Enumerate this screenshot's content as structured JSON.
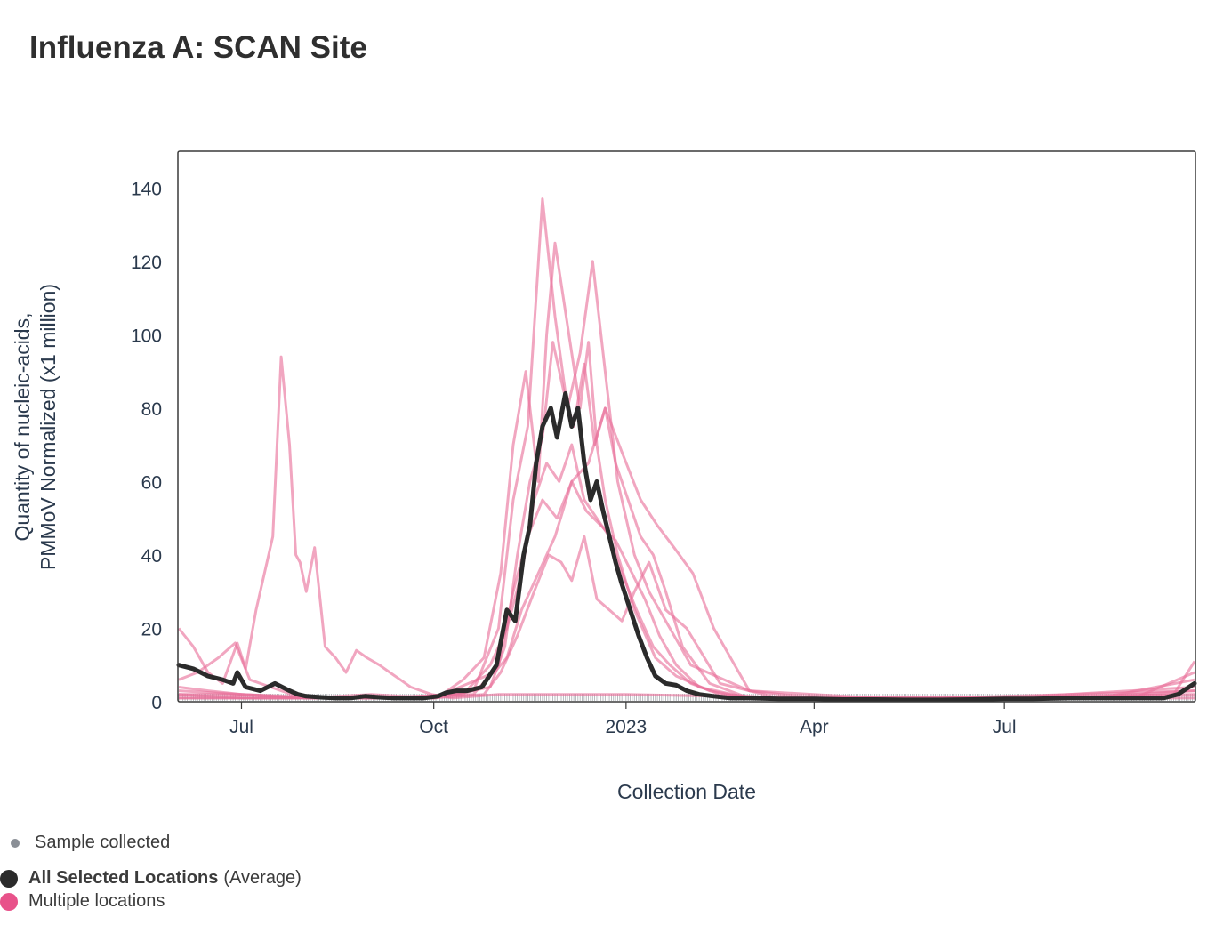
{
  "title": "Influenza A: SCAN Site",
  "chart_data": {
    "type": "line",
    "xlabel": "Collection Date",
    "ylabel_line1": "Quantity of nucleic-acids,",
    "ylabel_line2": "PMMoV Normalized (x1 million)",
    "ylim": [
      0,
      150
    ],
    "xlim": [
      "2022-06-01",
      "2023-09-30"
    ],
    "yticks": [
      0,
      20,
      40,
      60,
      80,
      100,
      120,
      140
    ],
    "xticks": [
      {
        "date": "2022-07-01",
        "label": "Jul"
      },
      {
        "date": "2022-10-01",
        "label": "Oct"
      },
      {
        "date": "2023-01-01",
        "label": "2023"
      },
      {
        "date": "2023-04-01",
        "label": "Apr"
      },
      {
        "date": "2023-07-01",
        "label": "Jul"
      }
    ],
    "grid": false,
    "colors": {
      "average": "#2b2b2b",
      "locations": "#e8709a",
      "sample": "#8a8f96"
    },
    "average_series": {
      "name": "All Selected Locations",
      "x": [
        "2022-06-01",
        "2022-06-08",
        "2022-06-15",
        "2022-06-22",
        "2022-06-27",
        "2022-06-29",
        "2022-07-03",
        "2022-07-10",
        "2022-07-17",
        "2022-07-24",
        "2022-07-28",
        "2022-08-01",
        "2022-08-08",
        "2022-08-15",
        "2022-08-22",
        "2022-08-29",
        "2022-09-05",
        "2022-09-12",
        "2022-09-19",
        "2022-09-26",
        "2022-10-03",
        "2022-10-07",
        "2022-10-12",
        "2022-10-17",
        "2022-10-24",
        "2022-10-31",
        "2022-11-05",
        "2022-11-09",
        "2022-11-13",
        "2022-11-16",
        "2022-11-19",
        "2022-11-22",
        "2022-11-26",
        "2022-11-29",
        "2022-12-03",
        "2022-12-06",
        "2022-12-09",
        "2022-12-12",
        "2022-12-15",
        "2022-12-18",
        "2022-12-21",
        "2022-12-24",
        "2022-12-27",
        "2022-12-30",
        "2023-01-03",
        "2023-01-07",
        "2023-01-11",
        "2023-01-15",
        "2023-01-20",
        "2023-01-25",
        "2023-01-30",
        "2023-02-05",
        "2023-02-12",
        "2023-02-20",
        "2023-03-01",
        "2023-03-15",
        "2023-04-01",
        "2023-04-15",
        "2023-05-01",
        "2023-05-15",
        "2023-06-01",
        "2023-06-15",
        "2023-07-01",
        "2023-07-15",
        "2023-08-01",
        "2023-08-15",
        "2023-09-01",
        "2023-09-15",
        "2023-09-22",
        "2023-09-30"
      ],
      "values": [
        10,
        9,
        7,
        6,
        5,
        8,
        4,
        3,
        5,
        3,
        2,
        1.5,
        1.2,
        1,
        1,
        1.5,
        1.2,
        1,
        1,
        1,
        1.5,
        2.5,
        3,
        3,
        4,
        10,
        25,
        22,
        40,
        48,
        65,
        75,
        80,
        72,
        84,
        75,
        80,
        65,
        55,
        60,
        52,
        45,
        38,
        32,
        25,
        18,
        12,
        7,
        5,
        4.5,
        3,
        2,
        1.5,
        1,
        1,
        0.8,
        0.8,
        0.6,
        0.6,
        0.5,
        0.5,
        0.6,
        0.8,
        0.8,
        1,
        1,
        1,
        1,
        2,
        5
      ]
    },
    "location_series": [
      {
        "x": [
          "2022-06-01",
          "2022-06-08",
          "2022-06-15",
          "2022-06-22",
          "2022-06-29",
          "2022-07-03",
          "2022-07-08",
          "2022-07-12",
          "2022-07-16",
          "2022-07-20",
          "2022-07-24",
          "2022-07-27",
          "2022-07-29",
          "2022-08-01",
          "2022-08-05",
          "2022-08-10",
          "2022-08-15",
          "2022-08-20",
          "2022-08-25",
          "2022-08-30",
          "2022-09-05",
          "2022-09-10",
          "2022-09-15",
          "2022-09-20",
          "2022-09-30",
          "2022-10-10",
          "2022-11-01",
          "2023-01-01",
          "2023-04-01",
          "2023-07-01",
          "2023-09-30"
        ],
        "values": [
          20,
          15,
          8,
          5,
          16,
          9,
          25,
          35,
          45,
          94,
          70,
          40,
          38,
          30,
          42,
          15,
          12,
          8,
          14,
          12,
          10,
          8,
          6,
          4,
          2,
          1,
          2,
          2,
          1,
          1,
          1
        ]
      },
      {
        "x": [
          "2022-06-01",
          "2022-06-10",
          "2022-06-20",
          "2022-06-28",
          "2022-07-05",
          "2022-07-15",
          "2022-07-25",
          "2022-08-05",
          "2022-08-20",
          "2022-09-05",
          "2022-09-20",
          "2022-10-05",
          "2022-10-15",
          "2022-10-25",
          "2022-11-02",
          "2022-11-08",
          "2022-11-14",
          "2022-11-20",
          "2022-11-24",
          "2022-11-28",
          "2022-12-02",
          "2022-12-06",
          "2022-12-10",
          "2022-12-14",
          "2022-12-18",
          "2022-12-22",
          "2022-12-28",
          "2023-01-05",
          "2023-01-15",
          "2023-01-25",
          "2023-02-10",
          "2023-03-01",
          "2023-04-15",
          "2023-06-01",
          "2023-08-01",
          "2023-09-20",
          "2023-09-30"
        ],
        "values": [
          6,
          8,
          12,
          16,
          6,
          4,
          2,
          1,
          1,
          1,
          1,
          2,
          6,
          12,
          35,
          70,
          90,
          60,
          100,
          125,
          110,
          95,
          80,
          98,
          70,
          55,
          40,
          25,
          12,
          7,
          3,
          1,
          1,
          1,
          1,
          2,
          11
        ]
      },
      {
        "x": [
          "2022-06-01",
          "2022-06-15",
          "2022-07-01",
          "2022-08-01",
          "2022-09-01",
          "2022-10-01",
          "2022-10-20",
          "2022-11-01",
          "2022-11-08",
          "2022-11-15",
          "2022-11-22",
          "2022-11-28",
          "2022-12-04",
          "2022-12-10",
          "2022-12-16",
          "2022-12-22",
          "2022-12-28",
          "2023-01-05",
          "2023-01-12",
          "2023-01-20",
          "2023-02-01",
          "2023-03-01",
          "2023-05-01",
          "2023-07-01",
          "2023-09-01",
          "2023-09-30"
        ],
        "values": [
          4,
          3,
          2,
          1,
          2,
          1,
          3,
          20,
          55,
          75,
          137,
          105,
          80,
          95,
          120,
          90,
          60,
          40,
          30,
          22,
          10,
          3,
          1,
          1,
          1,
          8
        ]
      },
      {
        "x": [
          "2022-06-01",
          "2022-07-01",
          "2022-08-01",
          "2022-09-01",
          "2022-10-01",
          "2022-10-25",
          "2022-11-02",
          "2022-11-10",
          "2022-11-18",
          "2022-11-25",
          "2022-12-01",
          "2022-12-06",
          "2022-12-12",
          "2022-12-18",
          "2022-12-24",
          "2022-12-30",
          "2023-01-05",
          "2023-01-12",
          "2023-01-20",
          "2023-01-30",
          "2023-02-15",
          "2023-03-15",
          "2023-06-01",
          "2023-09-30"
        ],
        "values": [
          2,
          2,
          1,
          1,
          1,
          2,
          8,
          18,
          30,
          40,
          38,
          33,
          45,
          28,
          25,
          22,
          30,
          38,
          25,
          20,
          5,
          1,
          1,
          3
        ]
      },
      {
        "x": [
          "2022-06-01",
          "2022-07-01",
          "2022-08-15",
          "2022-10-01",
          "2022-10-28",
          "2022-11-04",
          "2022-11-10",
          "2022-11-16",
          "2022-11-22",
          "2022-11-27",
          "2022-12-02",
          "2022-12-07",
          "2022-12-12",
          "2022-12-17",
          "2022-12-22",
          "2022-12-27",
          "2023-01-02",
          "2023-01-08",
          "2023-01-14",
          "2023-01-20",
          "2023-01-28",
          "2023-02-10",
          "2023-03-01",
          "2023-05-01",
          "2023-07-01",
          "2023-09-30"
        ],
        "values": [
          3,
          2,
          1,
          1,
          4,
          15,
          40,
          60,
          72,
          98,
          85,
          75,
          92,
          70,
          80,
          65,
          55,
          45,
          40,
          30,
          15,
          5,
          1,
          1,
          1,
          4
        ]
      },
      {
        "x": [
          "2022-06-01",
          "2022-07-01",
          "2022-09-01",
          "2022-10-15",
          "2022-10-28",
          "2022-11-05",
          "2022-11-12",
          "2022-11-18",
          "2022-11-24",
          "2022-11-30",
          "2022-12-06",
          "2022-12-12",
          "2022-12-18",
          "2022-12-24",
          "2022-12-30",
          "2023-01-06",
          "2023-01-14",
          "2023-01-22",
          "2023-02-01",
          "2023-02-15",
          "2023-03-15",
          "2023-06-01",
          "2023-09-30"
        ],
        "values": [
          2,
          1,
          1,
          2,
          10,
          20,
          35,
          55,
          65,
          60,
          70,
          55,
          50,
          45,
          35,
          25,
          15,
          10,
          5,
          2,
          1,
          1,
          2
        ]
      },
      {
        "x": [
          "2022-06-01",
          "2022-07-01",
          "2022-08-01",
          "2022-09-01",
          "2022-10-01",
          "2022-10-30",
          "2022-11-05",
          "2022-11-12",
          "2022-11-20",
          "2022-11-28",
          "2022-12-06",
          "2022-12-14",
          "2022-12-22",
          "2022-12-30",
          "2023-01-08",
          "2023-01-16",
          "2023-01-24",
          "2023-02-02",
          "2023-02-12",
          "2023-03-01",
          "2023-04-01",
          "2023-06-15",
          "2023-08-15",
          "2023-09-30"
        ],
        "values": [
          1,
          1,
          1,
          1,
          1,
          8,
          12,
          25,
          35,
          45,
          60,
          65,
          80,
          68,
          55,
          48,
          42,
          35,
          20,
          3,
          1,
          1,
          1,
          6
        ]
      },
      {
        "x": [
          "2022-06-01",
          "2022-07-15",
          "2022-09-01",
          "2022-10-20",
          "2022-11-01",
          "2022-11-08",
          "2022-11-15",
          "2022-11-22",
          "2022-11-29",
          "2022-12-06",
          "2022-12-13",
          "2022-12-20",
          "2022-12-27",
          "2023-01-03",
          "2023-01-10",
          "2023-01-17",
          "2023-01-25",
          "2023-02-05",
          "2023-03-01",
          "2023-05-01",
          "2023-08-01",
          "2023-09-30"
        ],
        "values": [
          1,
          1,
          1,
          2,
          10,
          30,
          45,
          55,
          50,
          60,
          52,
          48,
          44,
          36,
          28,
          18,
          10,
          4,
          1,
          1,
          1,
          3
        ]
      }
    ]
  },
  "legend": {
    "sample": "Sample collected",
    "average_bold": "All Selected Locations",
    "average_suffix": "(Average)",
    "multiple": "Multiple locations"
  }
}
